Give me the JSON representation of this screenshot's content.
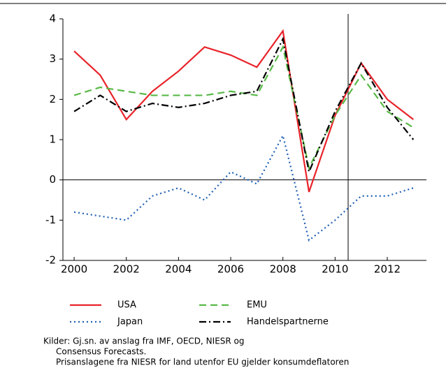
{
  "chart_data": {
    "type": "line",
    "x": [
      2000,
      2001,
      2002,
      2003,
      2004,
      2005,
      2006,
      2007,
      2008,
      2009,
      2010,
      2011,
      2012,
      2013
    ],
    "series": [
      {
        "name": "USA",
        "color": "#e8232a",
        "style": "solid",
        "values": [
          3.2,
          2.6,
          1.5,
          2.2,
          2.7,
          3.3,
          3.1,
          2.8,
          3.7,
          -0.3,
          1.6,
          2.9,
          2.0,
          1.5
        ]
      },
      {
        "name": "EMU",
        "color": "#58b947",
        "style": "dashed",
        "values": [
          2.1,
          2.3,
          2.2,
          2.1,
          2.1,
          2.1,
          2.2,
          2.1,
          3.3,
          0.3,
          1.6,
          2.6,
          1.7,
          1.3
        ]
      },
      {
        "name": "Japan",
        "color": "#1f5fb4",
        "style": "dotted",
        "values": [
          -0.8,
          -0.9,
          -1.0,
          -0.4,
          -0.2,
          -0.5,
          0.2,
          -0.1,
          1.1,
          -1.5,
          -1.0,
          -0.4,
          -0.4,
          -0.2
        ]
      },
      {
        "name": "Handelspartnerne",
        "color": "#000000",
        "style": "dashdot",
        "values": [
          1.7,
          2.1,
          1.7,
          1.9,
          1.8,
          1.9,
          2.1,
          2.2,
          3.5,
          0.2,
          1.7,
          2.9,
          1.8,
          1.0
        ]
      }
    ],
    "xlim": [
      1999.57,
      2013.5
    ],
    "xticks": [
      2000,
      2002,
      2004,
      2006,
      2008,
      2010,
      2012
    ],
    "ylim": [
      -2,
      4
    ],
    "yticks": [
      -2,
      -1,
      0,
      1,
      2,
      3,
      4
    ],
    "vline": 2010.5,
    "notes": [
      "Kilder: Gj.sn. av anslag fra IMF, OECD, NIESR og",
      "Consensus Forecasts.",
      "Prisanslagene fra NIESR for land utenfor EU gjelder konsumdeflatoren"
    ]
  }
}
